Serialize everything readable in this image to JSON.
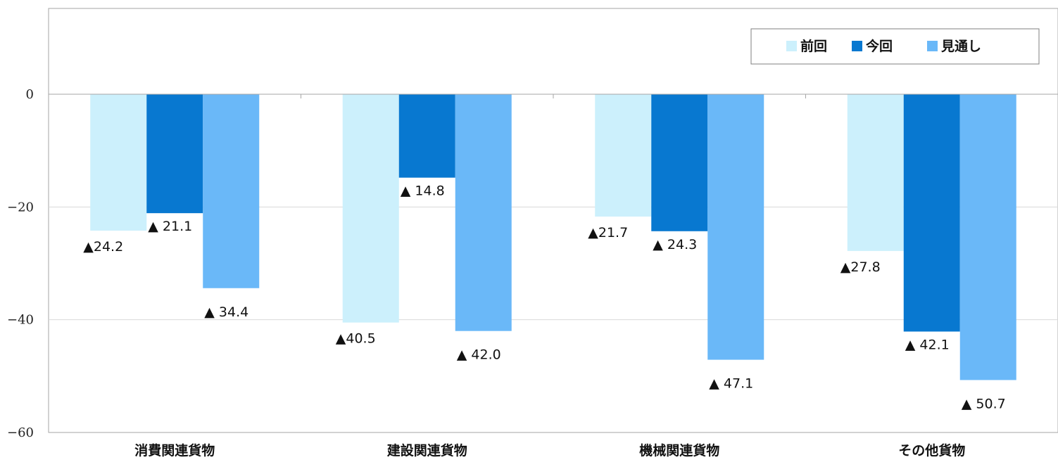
{
  "chart_data": {
    "type": "bar",
    "title": "",
    "xlabel": "",
    "ylabel": "",
    "ylim": [
      -60,
      15
    ],
    "yticks": [
      0,
      -20,
      -40,
      -60
    ],
    "ytick_labels": [
      "0",
      "−20",
      "−40",
      "−60"
    ],
    "categories": [
      "消費関連貨物",
      "建設関連貨物",
      "機械関連貨物",
      "その他貨物"
    ],
    "series": [
      {
        "name": "前回",
        "color": "#CCF0FC",
        "values": [
          -24.2,
          -40.5,
          -21.7,
          -27.8
        ],
        "labels": [
          "▲24.2",
          "▲40.5",
          "▲21.7",
          "▲27.8"
        ]
      },
      {
        "name": "今回",
        "color": "#0878D0",
        "values": [
          -21.1,
          -14.8,
          -24.3,
          -42.1
        ],
        "labels": [
          "▲ 21.1",
          "▲ 14.8",
          "▲ 24.3",
          "▲ 42.1"
        ]
      },
      {
        "name": "見通し",
        "color": "#6AB8F8",
        "values": [
          -34.4,
          -42.0,
          -47.1,
          -50.7
        ],
        "labels": [
          "▲ 34.4",
          "▲ 42.0",
          "▲ 47.1",
          "▲ 50.7"
        ]
      }
    ],
    "grid": true,
    "legend_position": "top-right"
  }
}
